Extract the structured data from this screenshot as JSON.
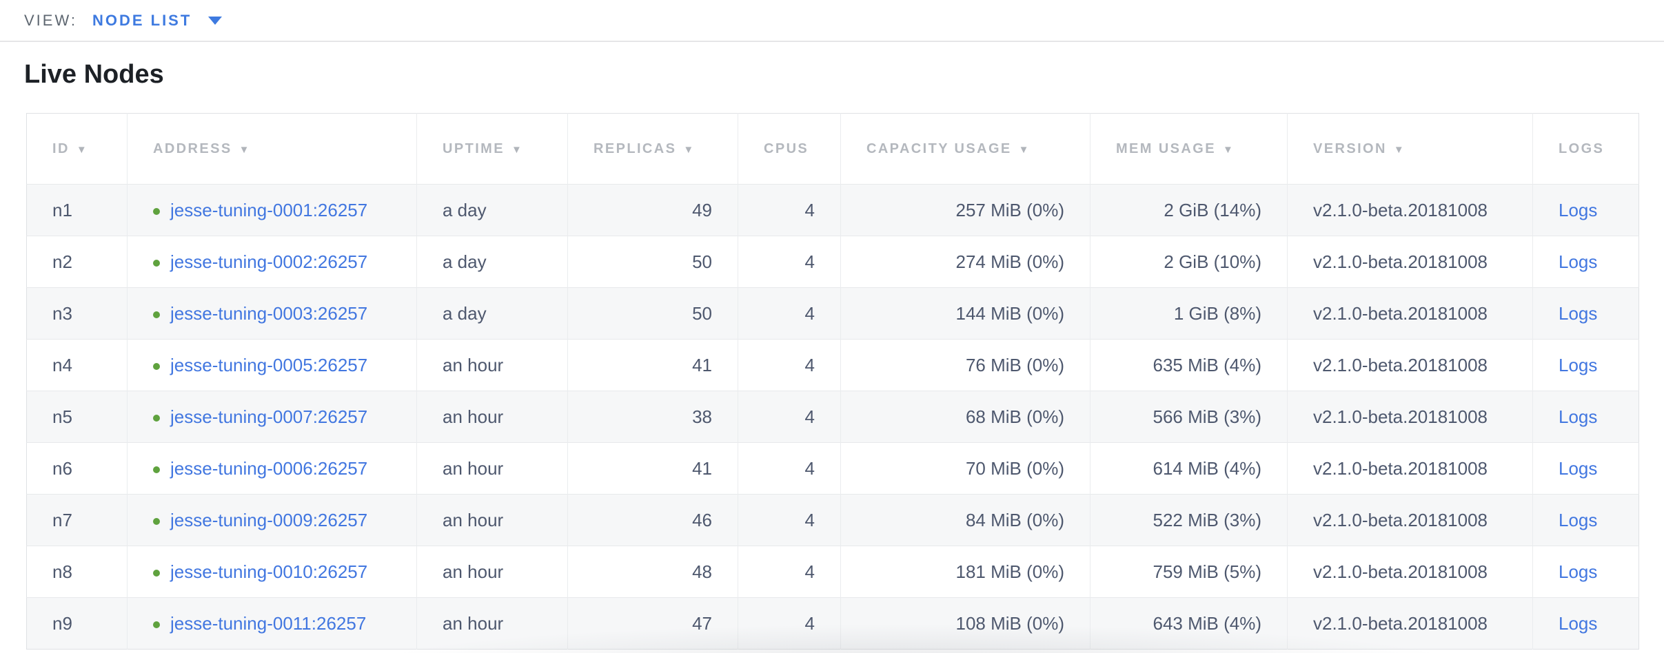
{
  "view_bar": {
    "label": "VIEW:",
    "selected": "NODE LIST",
    "dropdown_icon": "chevron-down"
  },
  "page": {
    "title": "Live Nodes"
  },
  "colors": {
    "accent_blue": "#3e7ae0",
    "link_blue": "#4277e0",
    "live_green": "#5fa23e",
    "header_gray": "#b4b8be",
    "cell_text": "#4e586e",
    "row_stripe": "#f6f7f8"
  },
  "table": {
    "sort_arrow_glyph": "▼",
    "columns": [
      {
        "key": "id",
        "label": "ID",
        "sortable": true,
        "align": "left"
      },
      {
        "key": "address",
        "label": "ADDRESS",
        "sortable": true,
        "align": "left"
      },
      {
        "key": "uptime",
        "label": "UPTIME",
        "sortable": true,
        "align": "left"
      },
      {
        "key": "replicas",
        "label": "REPLICAS",
        "sortable": true,
        "align": "right"
      },
      {
        "key": "cpus",
        "label": "CPUS",
        "sortable": false,
        "align": "right"
      },
      {
        "key": "capacity",
        "label": "CAPACITY USAGE",
        "sortable": true,
        "align": "right"
      },
      {
        "key": "mem",
        "label": "MEM USAGE",
        "sortable": true,
        "align": "right"
      },
      {
        "key": "version",
        "label": "VERSION",
        "sortable": true,
        "align": "left"
      },
      {
        "key": "logs",
        "label": "LOGS",
        "sortable": false,
        "align": "left"
      }
    ],
    "rows": [
      {
        "id": "n1",
        "status": "live",
        "address": "jesse-tuning-0001:26257",
        "uptime": "a day",
        "replicas": "49",
        "cpus": "4",
        "capacity": "257 MiB (0%)",
        "mem": "2 GiB (14%)",
        "version": "v2.1.0-beta.20181008",
        "logs": "Logs"
      },
      {
        "id": "n2",
        "status": "live",
        "address": "jesse-tuning-0002:26257",
        "uptime": "a day",
        "replicas": "50",
        "cpus": "4",
        "capacity": "274 MiB (0%)",
        "mem": "2 GiB (10%)",
        "version": "v2.1.0-beta.20181008",
        "logs": "Logs"
      },
      {
        "id": "n3",
        "status": "live",
        "address": "jesse-tuning-0003:26257",
        "uptime": "a day",
        "replicas": "50",
        "cpus": "4",
        "capacity": "144 MiB (0%)",
        "mem": "1 GiB (8%)",
        "version": "v2.1.0-beta.20181008",
        "logs": "Logs"
      },
      {
        "id": "n4",
        "status": "live",
        "address": "jesse-tuning-0005:26257",
        "uptime": "an hour",
        "replicas": "41",
        "cpus": "4",
        "capacity": "76 MiB (0%)",
        "mem": "635 MiB (4%)",
        "version": "v2.1.0-beta.20181008",
        "logs": "Logs"
      },
      {
        "id": "n5",
        "status": "live",
        "address": "jesse-tuning-0007:26257",
        "uptime": "an hour",
        "replicas": "38",
        "cpus": "4",
        "capacity": "68 MiB (0%)",
        "mem": "566 MiB (3%)",
        "version": "v2.1.0-beta.20181008",
        "logs": "Logs"
      },
      {
        "id": "n6",
        "status": "live",
        "address": "jesse-tuning-0006:26257",
        "uptime": "an hour",
        "replicas": "41",
        "cpus": "4",
        "capacity": "70 MiB (0%)",
        "mem": "614 MiB (4%)",
        "version": "v2.1.0-beta.20181008",
        "logs": "Logs"
      },
      {
        "id": "n7",
        "status": "live",
        "address": "jesse-tuning-0009:26257",
        "uptime": "an hour",
        "replicas": "46",
        "cpus": "4",
        "capacity": "84 MiB (0%)",
        "mem": "522 MiB (3%)",
        "version": "v2.1.0-beta.20181008",
        "logs": "Logs"
      },
      {
        "id": "n8",
        "status": "live",
        "address": "jesse-tuning-0010:26257",
        "uptime": "an hour",
        "replicas": "48",
        "cpus": "4",
        "capacity": "181 MiB (0%)",
        "mem": "759 MiB (5%)",
        "version": "v2.1.0-beta.20181008",
        "logs": "Logs"
      },
      {
        "id": "n9",
        "status": "live",
        "address": "jesse-tuning-0011:26257",
        "uptime": "an hour",
        "replicas": "47",
        "cpus": "4",
        "capacity": "108 MiB (0%)",
        "mem": "643 MiB (4%)",
        "version": "v2.1.0-beta.20181008",
        "logs": "Logs"
      }
    ]
  }
}
